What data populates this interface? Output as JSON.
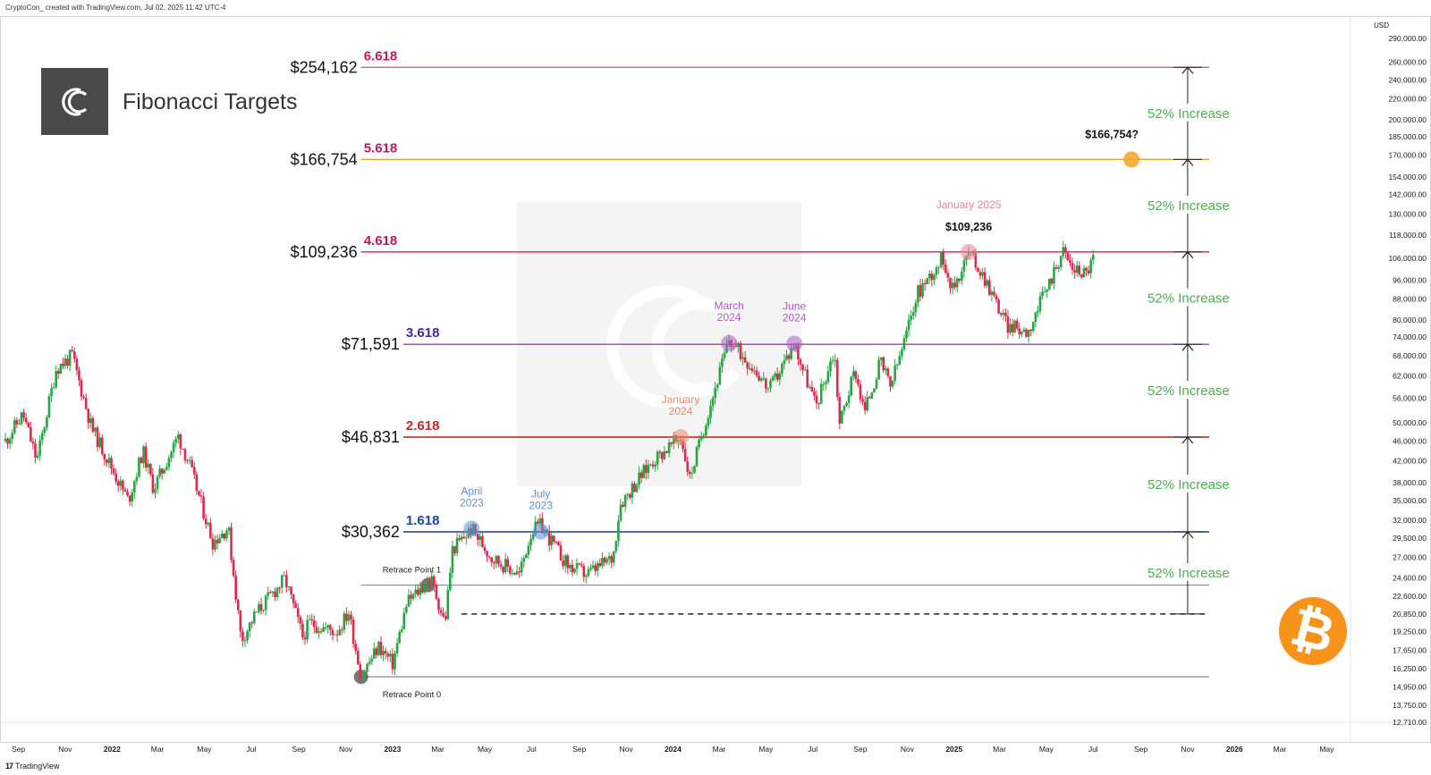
{
  "header": {
    "text": "CryptoCon_  created with TradingView.com, Jul 02, 2025 11:42 UTC-4"
  },
  "footer": {
    "brand": "TradingView",
    "mark": "17"
  },
  "brand": {
    "title": "Fibonacci Targets",
    "logo_icon": "cryptocon-logo-icon"
  },
  "chart_data": {
    "type": "candlestick",
    "currency": "USD",
    "y_scale": "log",
    "ylim": [
      12710,
      290000
    ],
    "y_ticks": [
      290000,
      260000,
      240000,
      220000,
      200000,
      185000,
      170000,
      154000,
      142000,
      130000,
      118000,
      106000,
      96000,
      88000,
      80000,
      74000,
      68000,
      62000,
      56000,
      50000,
      46000,
      42000,
      38000,
      35000,
      32000,
      29500,
      27000,
      24600,
      22600,
      20850,
      19250,
      17650,
      16250,
      14950,
      13750,
      12710
    ],
    "y_tick_labels": [
      "290,000.00",
      "260,000.00",
      "240,000.00",
      "220,000.00",
      "200,000.00",
      "185,000.00",
      "170,000.00",
      "154,000.00",
      "142,000.00",
      "130,000.00",
      "118,000.00",
      "106,000.00",
      "96,000.00",
      "88,000.00",
      "80,000.00",
      "74,000.00",
      "68,000.00",
      "62,000.00",
      "56,000.00",
      "50,000.00",
      "46,000.00",
      "42,000.00",
      "38,000.00",
      "35,000.00",
      "32,000.00",
      "29,500.00",
      "27,000.00",
      "24,600.00",
      "22,600.00",
      "20,850.00",
      "19,250.00",
      "17,650.00",
      "16,250.00",
      "14,950.00",
      "13,750.00",
      "12,710.00"
    ],
    "x_start": "2021-08-15",
    "x_end": "2026-06-01",
    "x_ticks": [
      {
        "date": "2021-09-01",
        "label": "Sep",
        "bold": false
      },
      {
        "date": "2021-11-01",
        "label": "Nov",
        "bold": false
      },
      {
        "date": "2022-01-01",
        "label": "2022",
        "bold": true
      },
      {
        "date": "2022-03-01",
        "label": "Mar",
        "bold": false
      },
      {
        "date": "2022-05-01",
        "label": "May",
        "bold": false
      },
      {
        "date": "2022-07-01",
        "label": "Jul",
        "bold": false
      },
      {
        "date": "2022-09-01",
        "label": "Sep",
        "bold": false
      },
      {
        "date": "2022-11-01",
        "label": "Nov",
        "bold": false
      },
      {
        "date": "2023-01-01",
        "label": "2023",
        "bold": true
      },
      {
        "date": "2023-03-01",
        "label": "Mar",
        "bold": false
      },
      {
        "date": "2023-05-01",
        "label": "May",
        "bold": false
      },
      {
        "date": "2023-07-01",
        "label": "Jul",
        "bold": false
      },
      {
        "date": "2023-09-01",
        "label": "Sep",
        "bold": false
      },
      {
        "date": "2023-11-01",
        "label": "Nov",
        "bold": false
      },
      {
        "date": "2024-01-01",
        "label": "2024",
        "bold": true
      },
      {
        "date": "2024-03-01",
        "label": "Mar",
        "bold": false
      },
      {
        "date": "2024-05-01",
        "label": "May",
        "bold": false
      },
      {
        "date": "2024-07-01",
        "label": "Jul",
        "bold": false
      },
      {
        "date": "2024-09-01",
        "label": "Sep",
        "bold": false
      },
      {
        "date": "2024-11-01",
        "label": "Nov",
        "bold": false
      },
      {
        "date": "2025-01-01",
        "label": "2025",
        "bold": true
      },
      {
        "date": "2025-03-01",
        "label": "Mar",
        "bold": false
      },
      {
        "date": "2025-05-01",
        "label": "May",
        "bold": false
      },
      {
        "date": "2025-07-01",
        "label": "Jul",
        "bold": false
      },
      {
        "date": "2025-09-01",
        "label": "Sep",
        "bold": false
      },
      {
        "date": "2025-11-01",
        "label": "Nov",
        "bold": false
      },
      {
        "date": "2026-01-01",
        "label": "2026",
        "bold": true
      },
      {
        "date": "2026-03-01",
        "label": "Mar",
        "bold": false
      },
      {
        "date": "2026-05-01",
        "label": "May",
        "bold": false
      }
    ],
    "price_path": [
      [
        "2021-08-15",
        46000
      ],
      [
        "2021-09-07",
        52000
      ],
      [
        "2021-09-25",
        42000
      ],
      [
        "2021-10-20",
        64000
      ],
      [
        "2021-11-10",
        68000
      ],
      [
        "2021-12-05",
        49000
      ],
      [
        "2022-01-22",
        35000
      ],
      [
        "2022-02-10",
        44000
      ],
      [
        "2022-02-24",
        37000
      ],
      [
        "2022-03-28",
        47000
      ],
      [
        "2022-04-10",
        42000
      ],
      [
        "2022-05-12",
        29000
      ],
      [
        "2022-06-01",
        31000
      ],
      [
        "2022-06-18",
        18500
      ],
      [
        "2022-07-08",
        21000
      ],
      [
        "2022-08-14",
        24500
      ],
      [
        "2022-09-06",
        18800
      ],
      [
        "2022-09-15",
        20000
      ],
      [
        "2022-10-20",
        19200
      ],
      [
        "2022-11-05",
        21000
      ],
      [
        "2022-11-21",
        15700
      ],
      [
        "2022-12-14",
        18000
      ],
      [
        "2023-01-01",
        16600
      ],
      [
        "2023-01-20",
        22000
      ],
      [
        "2023-02-20",
        24500
      ],
      [
        "2023-03-10",
        20000
      ],
      [
        "2023-03-20",
        28000
      ],
      [
        "2023-04-14",
        30800
      ],
      [
        "2023-05-10",
        27000
      ],
      [
        "2023-06-15",
        25000
      ],
      [
        "2023-07-01",
        30500
      ],
      [
        "2023-07-13",
        31300
      ],
      [
        "2023-08-17",
        26000
      ],
      [
        "2023-09-11",
        25000
      ],
      [
        "2023-10-15",
        27000
      ],
      [
        "2023-10-24",
        34500
      ],
      [
        "2023-12-05",
        42000
      ],
      [
        "2024-01-11",
        46800
      ],
      [
        "2024-01-23",
        38800
      ],
      [
        "2024-02-15",
        52000
      ],
      [
        "2024-03-14",
        73000
      ],
      [
        "2024-04-20",
        63000
      ],
      [
        "2024-05-05",
        58000
      ],
      [
        "2024-06-07",
        71800
      ],
      [
        "2024-07-05",
        54000
      ],
      [
        "2024-07-29",
        69500
      ],
      [
        "2024-08-05",
        50000
      ],
      [
        "2024-08-25",
        64000
      ],
      [
        "2024-09-06",
        52500
      ],
      [
        "2024-09-27",
        66000
      ],
      [
        "2024-10-10",
        59000
      ],
      [
        "2024-10-29",
        73000
      ],
      [
        "2024-11-13",
        90000
      ],
      [
        "2024-12-05",
        100000
      ],
      [
        "2024-12-17",
        107000
      ],
      [
        "2024-12-30",
        92000
      ],
      [
        "2025-01-20",
        109200
      ],
      [
        "2025-02-10",
        97000
      ],
      [
        "2025-03-01",
        84000
      ],
      [
        "2025-03-11",
        78000
      ],
      [
        "2025-04-07",
        76000
      ],
      [
        "2025-05-05",
        95000
      ],
      [
        "2025-05-22",
        110000
      ],
      [
        "2025-06-05",
        101000
      ],
      [
        "2025-06-22",
        99500
      ],
      [
        "2025-07-02",
        107000
      ]
    ],
    "fib_levels": [
      {
        "ratio": "6.618",
        "price_label": "$254,162",
        "value": 254162,
        "color": "#e06070",
        "ratio_color": "#c2185b",
        "start": "2022-11-21"
      },
      {
        "ratio": "5.618",
        "price_label": "$166,754",
        "value": 166754,
        "color": "#f0a020",
        "ratio_color": "#c2185b",
        "start": "2022-11-21"
      },
      {
        "ratio": "4.618",
        "price_label": "$109,236",
        "value": 109236,
        "color": "#d81b60",
        "ratio_color": "#c2185b",
        "start": "2022-11-21"
      },
      {
        "ratio": "3.618",
        "price_label": "$71,591",
        "value": 71591,
        "color": "#8e44ad",
        "ratio_color": "#4527a0",
        "start": "2023-01-15"
      },
      {
        "ratio": "2.618",
        "price_label": "$46,831",
        "value": 46831,
        "color": "#b71c1c",
        "ratio_color": "#c62828",
        "start": "2023-01-15"
      },
      {
        "ratio": "1.618",
        "price_label": "$30,362",
        "value": 30362,
        "color": "#1a3a8a",
        "ratio_color": "#1e40af",
        "start": "2023-01-15"
      }
    ],
    "retrace_levels": [
      {
        "label": "Retrace Point 1",
        "value": 23800,
        "date": "2023-02-16",
        "label_above": true
      },
      {
        "label": "Retrace Point 0",
        "value": 15650,
        "date": "2022-11-21",
        "label_above": false
      }
    ],
    "dashed_level": {
      "value": 20850,
      "start": "2023-04-01"
    },
    "arrow_date": "2025-11-01",
    "increase_label": "52% Increase",
    "touch_markers": [
      {
        "label": "April\n2023",
        "date": "2023-04-14",
        "value": 30800,
        "color": "#5b8fd9"
      },
      {
        "label": "July\n2023",
        "date": "2023-07-13",
        "value": 30400,
        "color": "#5b8fd9"
      },
      {
        "label": "January\n2024",
        "date": "2024-01-11",
        "value": 46800,
        "color": "#e88a6a"
      },
      {
        "label": "March\n2024",
        "date": "2024-03-14",
        "value": 72000,
        "color": "#b05cc8"
      },
      {
        "label": "June\n2024",
        "date": "2024-06-07",
        "value": 71800,
        "color": "#b05cc8"
      },
      {
        "label": "January 2025",
        "date": "2025-01-20",
        "value": 109200,
        "color": "#ec7f97",
        "sub": "$109,236"
      }
    ],
    "target_marker": {
      "label": "$166,754?",
      "date": "2025-08-20",
      "value": 166754,
      "color": "#f5a623"
    }
  },
  "colors": {
    "up": "#26a641",
    "down": "#e0294a",
    "increase_text": "#4caf50",
    "axis_text": "#131722"
  },
  "btc_icon": "bitcoin-icon",
  "btc_glyph": "₿"
}
